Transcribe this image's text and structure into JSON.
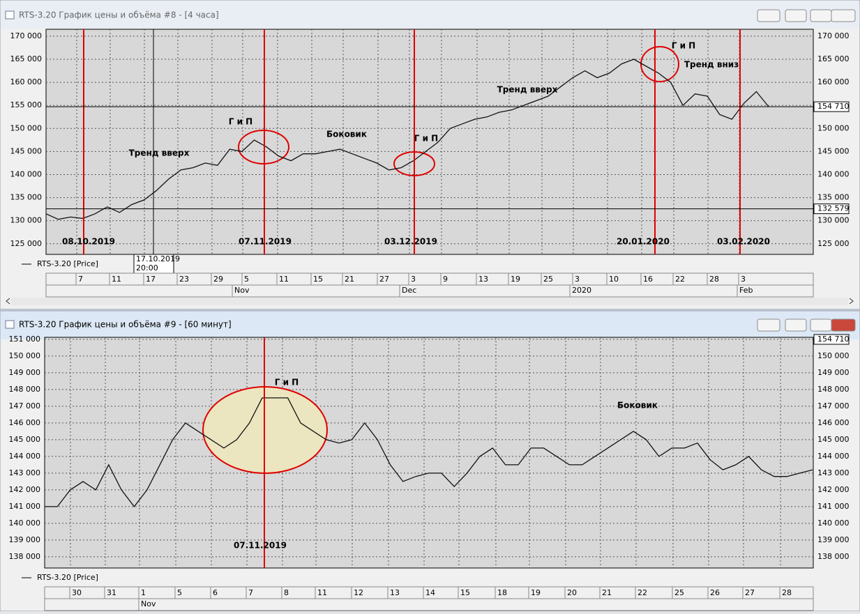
{
  "windows": [
    {
      "title": "RTS-3.20 График цены и объёма #8 - [4 часа]",
      "legend": "RTS-3.20 [Price]",
      "ylim": [
        122700,
        171500
      ],
      "yticks": [
        {
          "value": 125000,
          "label": "125 000"
        },
        {
          "value": 130000,
          "label": "130 000"
        },
        {
          "value": 135000,
          "label": "135 000"
        },
        {
          "value": 140000,
          "label": "140 000"
        },
        {
          "value": 145000,
          "label": "145 000"
        },
        {
          "value": 150000,
          "label": "150 000"
        },
        {
          "value": 155000,
          "label": "155 000"
        },
        {
          "value": 160000,
          "label": "160 000"
        },
        {
          "value": 165000,
          "label": "165 000"
        },
        {
          "value": 170000,
          "label": "170 000"
        }
      ],
      "price_label": {
        "value": 154710,
        "label": "154 710"
      },
      "cursor_label": {
        "value": 132579,
        "label": "132 579"
      },
      "cursor_date": [
        "17.10.2019",
        "20:00"
      ],
      "x_ticks": [
        "7",
        "11",
        "17",
        "23",
        "29",
        "5",
        "11",
        "15",
        "21",
        "27",
        "3",
        "9",
        "13",
        "19",
        "25",
        "3",
        "10",
        "16",
        "22",
        "28",
        "3"
      ],
      "months": [
        "Nov",
        "Dec",
        "2020",
        "Feb"
      ],
      "annotations": [
        "Тренд вверх",
        "Г и П",
        "Боковик",
        "Г и П",
        "Тренд вверх",
        "Г и П",
        "Тренд вниз"
      ],
      "dates": [
        "08.10.2019",
        "07.11.2019",
        "03.12.2019",
        "20.01.2020",
        "03.02.2020"
      ],
      "prices": [
        131500,
        130300,
        130800,
        130500,
        131500,
        133000,
        131800,
        133500,
        134500,
        136500,
        139000,
        141000,
        141500,
        142500,
        142000,
        145500,
        145000,
        147500,
        146000,
        144000,
        143000,
        144500,
        144500,
        145000,
        145500,
        144500,
        143500,
        142500,
        141000,
        141500,
        143000,
        145000,
        147000,
        150000,
        151000,
        152000,
        152500,
        153500,
        154000,
        155000,
        156000,
        157000,
        159000,
        161000,
        162500,
        161000,
        162000,
        164000,
        165000,
        163500,
        162000,
        160000,
        155000,
        157500,
        157000,
        153000,
        152000,
        155500,
        158000,
        154710
      ]
    },
    {
      "title": "RTS-3.20 График цены и объёма #9 - [60 минут]",
      "legend": "RTS-3.20 [Price]",
      "ylim": [
        137330,
        151120
      ],
      "yticks": [
        {
          "value": 138000,
          "label": "138 000"
        },
        {
          "value": 139000,
          "label": "139 000"
        },
        {
          "value": 140000,
          "label": "140 000"
        },
        {
          "value": 141000,
          "label": "141 000"
        },
        {
          "value": 142000,
          "label": "142 000"
        },
        {
          "value": 143000,
          "label": "143 000"
        },
        {
          "value": 144000,
          "label": "144 000"
        },
        {
          "value": 145000,
          "label": "145 000"
        },
        {
          "value": 146000,
          "label": "146 000"
        },
        {
          "value": 147000,
          "label": "147 000"
        },
        {
          "value": 148000,
          "label": "148 000"
        },
        {
          "value": 149000,
          "label": "149 000"
        },
        {
          "value": 150000,
          "label": "150 000"
        },
        {
          "value": 151000,
          "label": "151 000"
        }
      ],
      "price_label": {
        "value": 154710,
        "label": "154 710"
      },
      "x_ticks": [
        "30",
        "31",
        "1",
        "5",
        "6",
        "7",
        "8",
        "11",
        "12",
        "13",
        "14",
        "15",
        "18",
        "19",
        "20",
        "21",
        "22",
        "25",
        "26",
        "27",
        "28"
      ],
      "months": [
        "Nov"
      ],
      "annotations": [
        "Г и П",
        "Боковик"
      ],
      "dates": [
        "07.11.2019"
      ],
      "prices": [
        141000,
        141000,
        142000,
        142500,
        142000,
        143500,
        142000,
        141000,
        142000,
        143500,
        145000,
        146000,
        145500,
        145000,
        144500,
        145000,
        146000,
        147500,
        147500,
        147500,
        146000,
        145500,
        145000,
        144800,
        145000,
        146000,
        145000,
        143500,
        142500,
        142800,
        143000,
        143000,
        142200,
        143000,
        144000,
        144500,
        143500,
        143500,
        144500,
        144500,
        144000,
        143500,
        143500,
        144000,
        144500,
        145000,
        145500,
        145000,
        144000,
        144500,
        144500,
        144800,
        143800,
        143200,
        143500,
        144000,
        143200,
        142800,
        142800,
        143000,
        143200
      ]
    }
  ]
}
